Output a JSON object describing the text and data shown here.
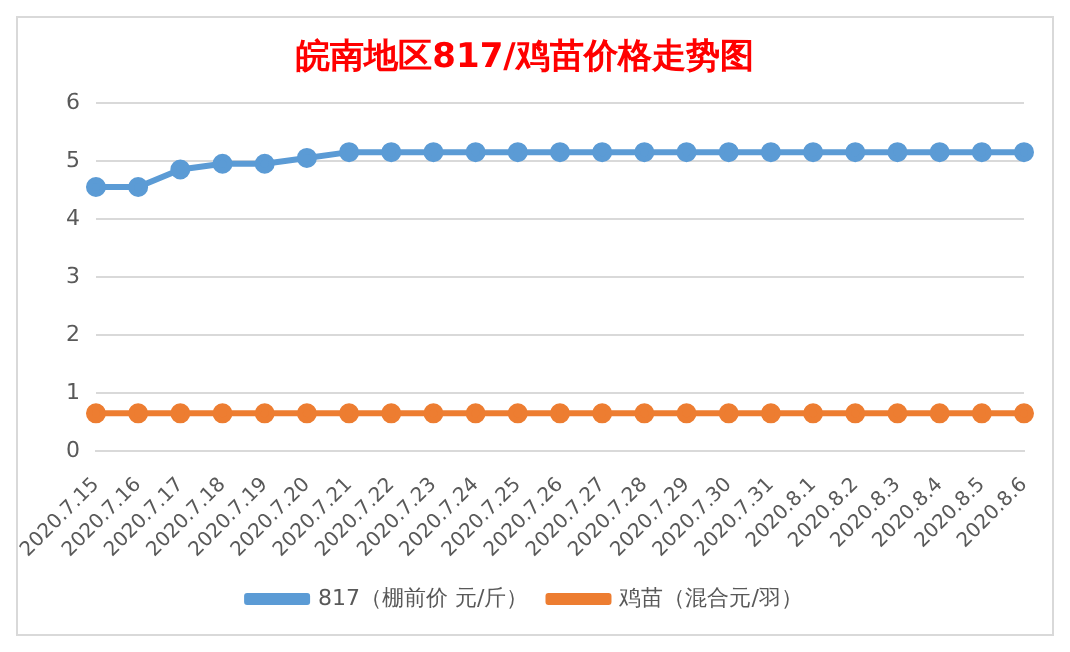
{
  "chart_data": {
    "type": "line",
    "title": "皖南地区817/鸡苗价格走势图",
    "categories": [
      "2020.7.15",
      "2020.7.16",
      "2020.7.17",
      "2020.7.18",
      "2020.7.19",
      "2020.7.20",
      "2020.7.21",
      "2020.7.22",
      "2020.7.23",
      "2020.7.24",
      "2020.7.25",
      "2020.7.26",
      "2020.7.27",
      "2020.7.28",
      "2020.7.29",
      "2020.7.30",
      "2020.7.31",
      "2020.8.1",
      "2020.8.2",
      "2020.8.3",
      "2020.8.4",
      "2020.8.5",
      "2020.8.6"
    ],
    "series": [
      {
        "name": "817（棚前价 元/斤）",
        "color": "#5b9bd5",
        "values": [
          4.55,
          4.55,
          4.85,
          4.95,
          4.95,
          5.05,
          5.15,
          5.15,
          5.15,
          5.15,
          5.15,
          5.15,
          5.15,
          5.15,
          5.15,
          5.15,
          5.15,
          5.15,
          5.15,
          5.15,
          5.15,
          5.15,
          5.15
        ]
      },
      {
        "name": "鸡苗（混合元/羽）",
        "color": "#ed7d31",
        "values": [
          0.65,
          0.65,
          0.65,
          0.65,
          0.65,
          0.65,
          0.65,
          0.65,
          0.65,
          0.65,
          0.65,
          0.65,
          0.65,
          0.65,
          0.65,
          0.65,
          0.65,
          0.65,
          0.65,
          0.65,
          0.65,
          0.65,
          0.65
        ]
      }
    ],
    "ylim": [
      0,
      6
    ],
    "yticks": [
      0,
      1,
      2,
      3,
      4,
      5,
      6
    ],
    "grid": "y",
    "legend": "bottom",
    "marker": "circle",
    "line_style": "solid"
  }
}
